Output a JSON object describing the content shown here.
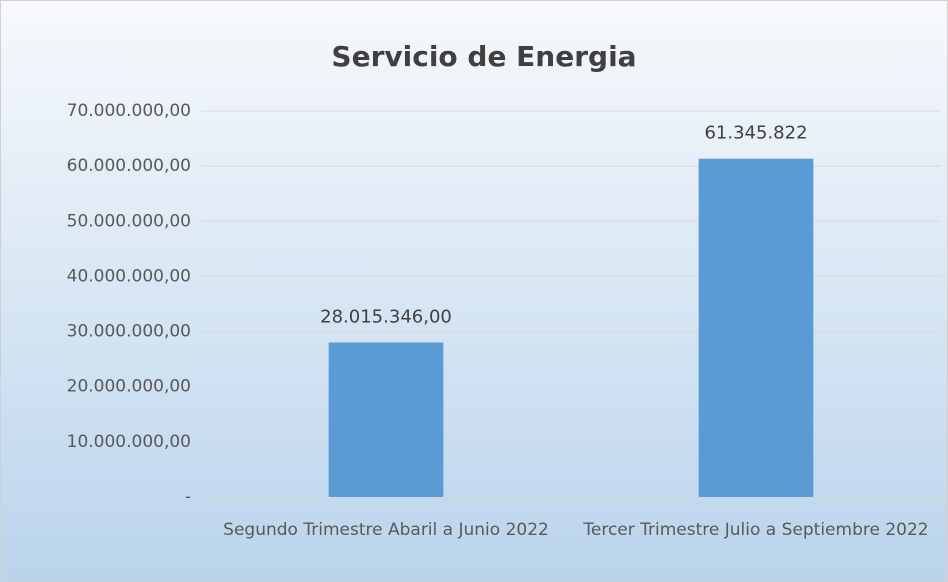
{
  "chart_data": {
    "type": "bar",
    "title": "Servicio de Energia",
    "categories": [
      "Segundo Trimestre Abaril a Junio 2022",
      "Tercer Trimestre Julio a Septiembre 2022"
    ],
    "values": [
      28015346,
      61345822
    ],
    "value_labels": [
      "28.015.346,00",
      "61.345.822"
    ],
    "color": "#5b9bd5",
    "ylim": [
      0,
      70000000
    ],
    "yticks": [
      {
        "value": 0,
        "label": "-"
      },
      {
        "value": 10000000,
        "label": "10.000.000,00"
      },
      {
        "value": 20000000,
        "label": "20.000.000,00"
      },
      {
        "value": 30000000,
        "label": "30.000.000,00"
      },
      {
        "value": 40000000,
        "label": "40.000.000,00"
      },
      {
        "value": 50000000,
        "label": "50.000.000,00"
      },
      {
        "value": 60000000,
        "label": "60.000.000,00"
      },
      {
        "value": 70000000,
        "label": "70.000.000,00"
      }
    ],
    "grid": true
  }
}
